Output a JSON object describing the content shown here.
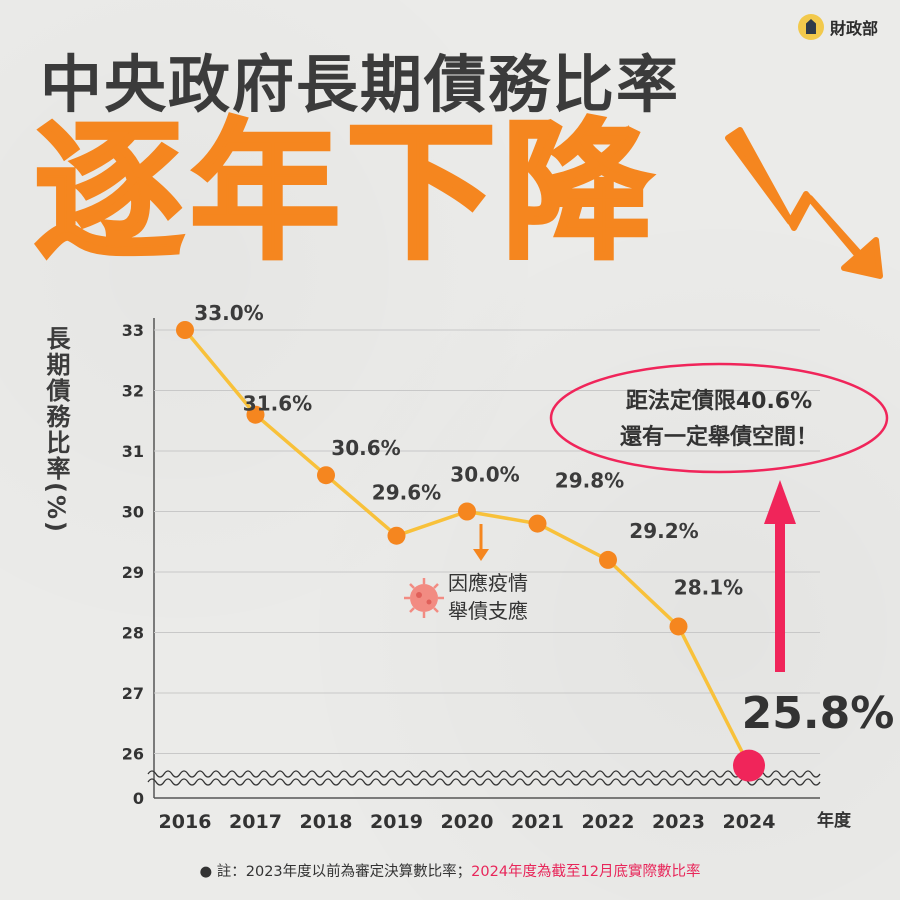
{
  "header": {
    "logo_text": "財政部",
    "title_line1": "中央政府長期債務比率",
    "title_line2": "逐年下降"
  },
  "chart_data": {
    "type": "line",
    "ylabel": "長期債務比率(%)",
    "xlabel": "年度",
    "categories": [
      "2016",
      "2017",
      "2018",
      "2019",
      "2020",
      "2021",
      "2022",
      "2023",
      "2024"
    ],
    "values": [
      33.0,
      31.6,
      30.6,
      29.6,
      30.0,
      29.8,
      29.2,
      28.1,
      25.8
    ],
    "data_labels": [
      "33.0%",
      "31.6%",
      "30.6%",
      "29.6%",
      "30.0%",
      "29.8%",
      "29.2%",
      "28.1%",
      "25.8%"
    ],
    "yticks": [
      "33",
      "32",
      "31",
      "30",
      "29",
      "28",
      "27",
      "26",
      "0"
    ],
    "ylim": [
      25.5,
      33
    ],
    "axis_break": true,
    "grid": true,
    "line_color": "#f8c13a",
    "point_color": "#f5861f",
    "highlight_color": "#f0255a",
    "annotations": {
      "covid_line1": "因應疫情",
      "covid_line2": "舉債支應",
      "limit_line1": "距法定債限40.6%",
      "limit_line2": "還有一定舉債空間！"
    }
  },
  "footer": {
    "note_prefix": "● 註：2023年度以前為審定決算數比率；",
    "note_highlight": "2024年度為截至12月底實際數比率"
  }
}
